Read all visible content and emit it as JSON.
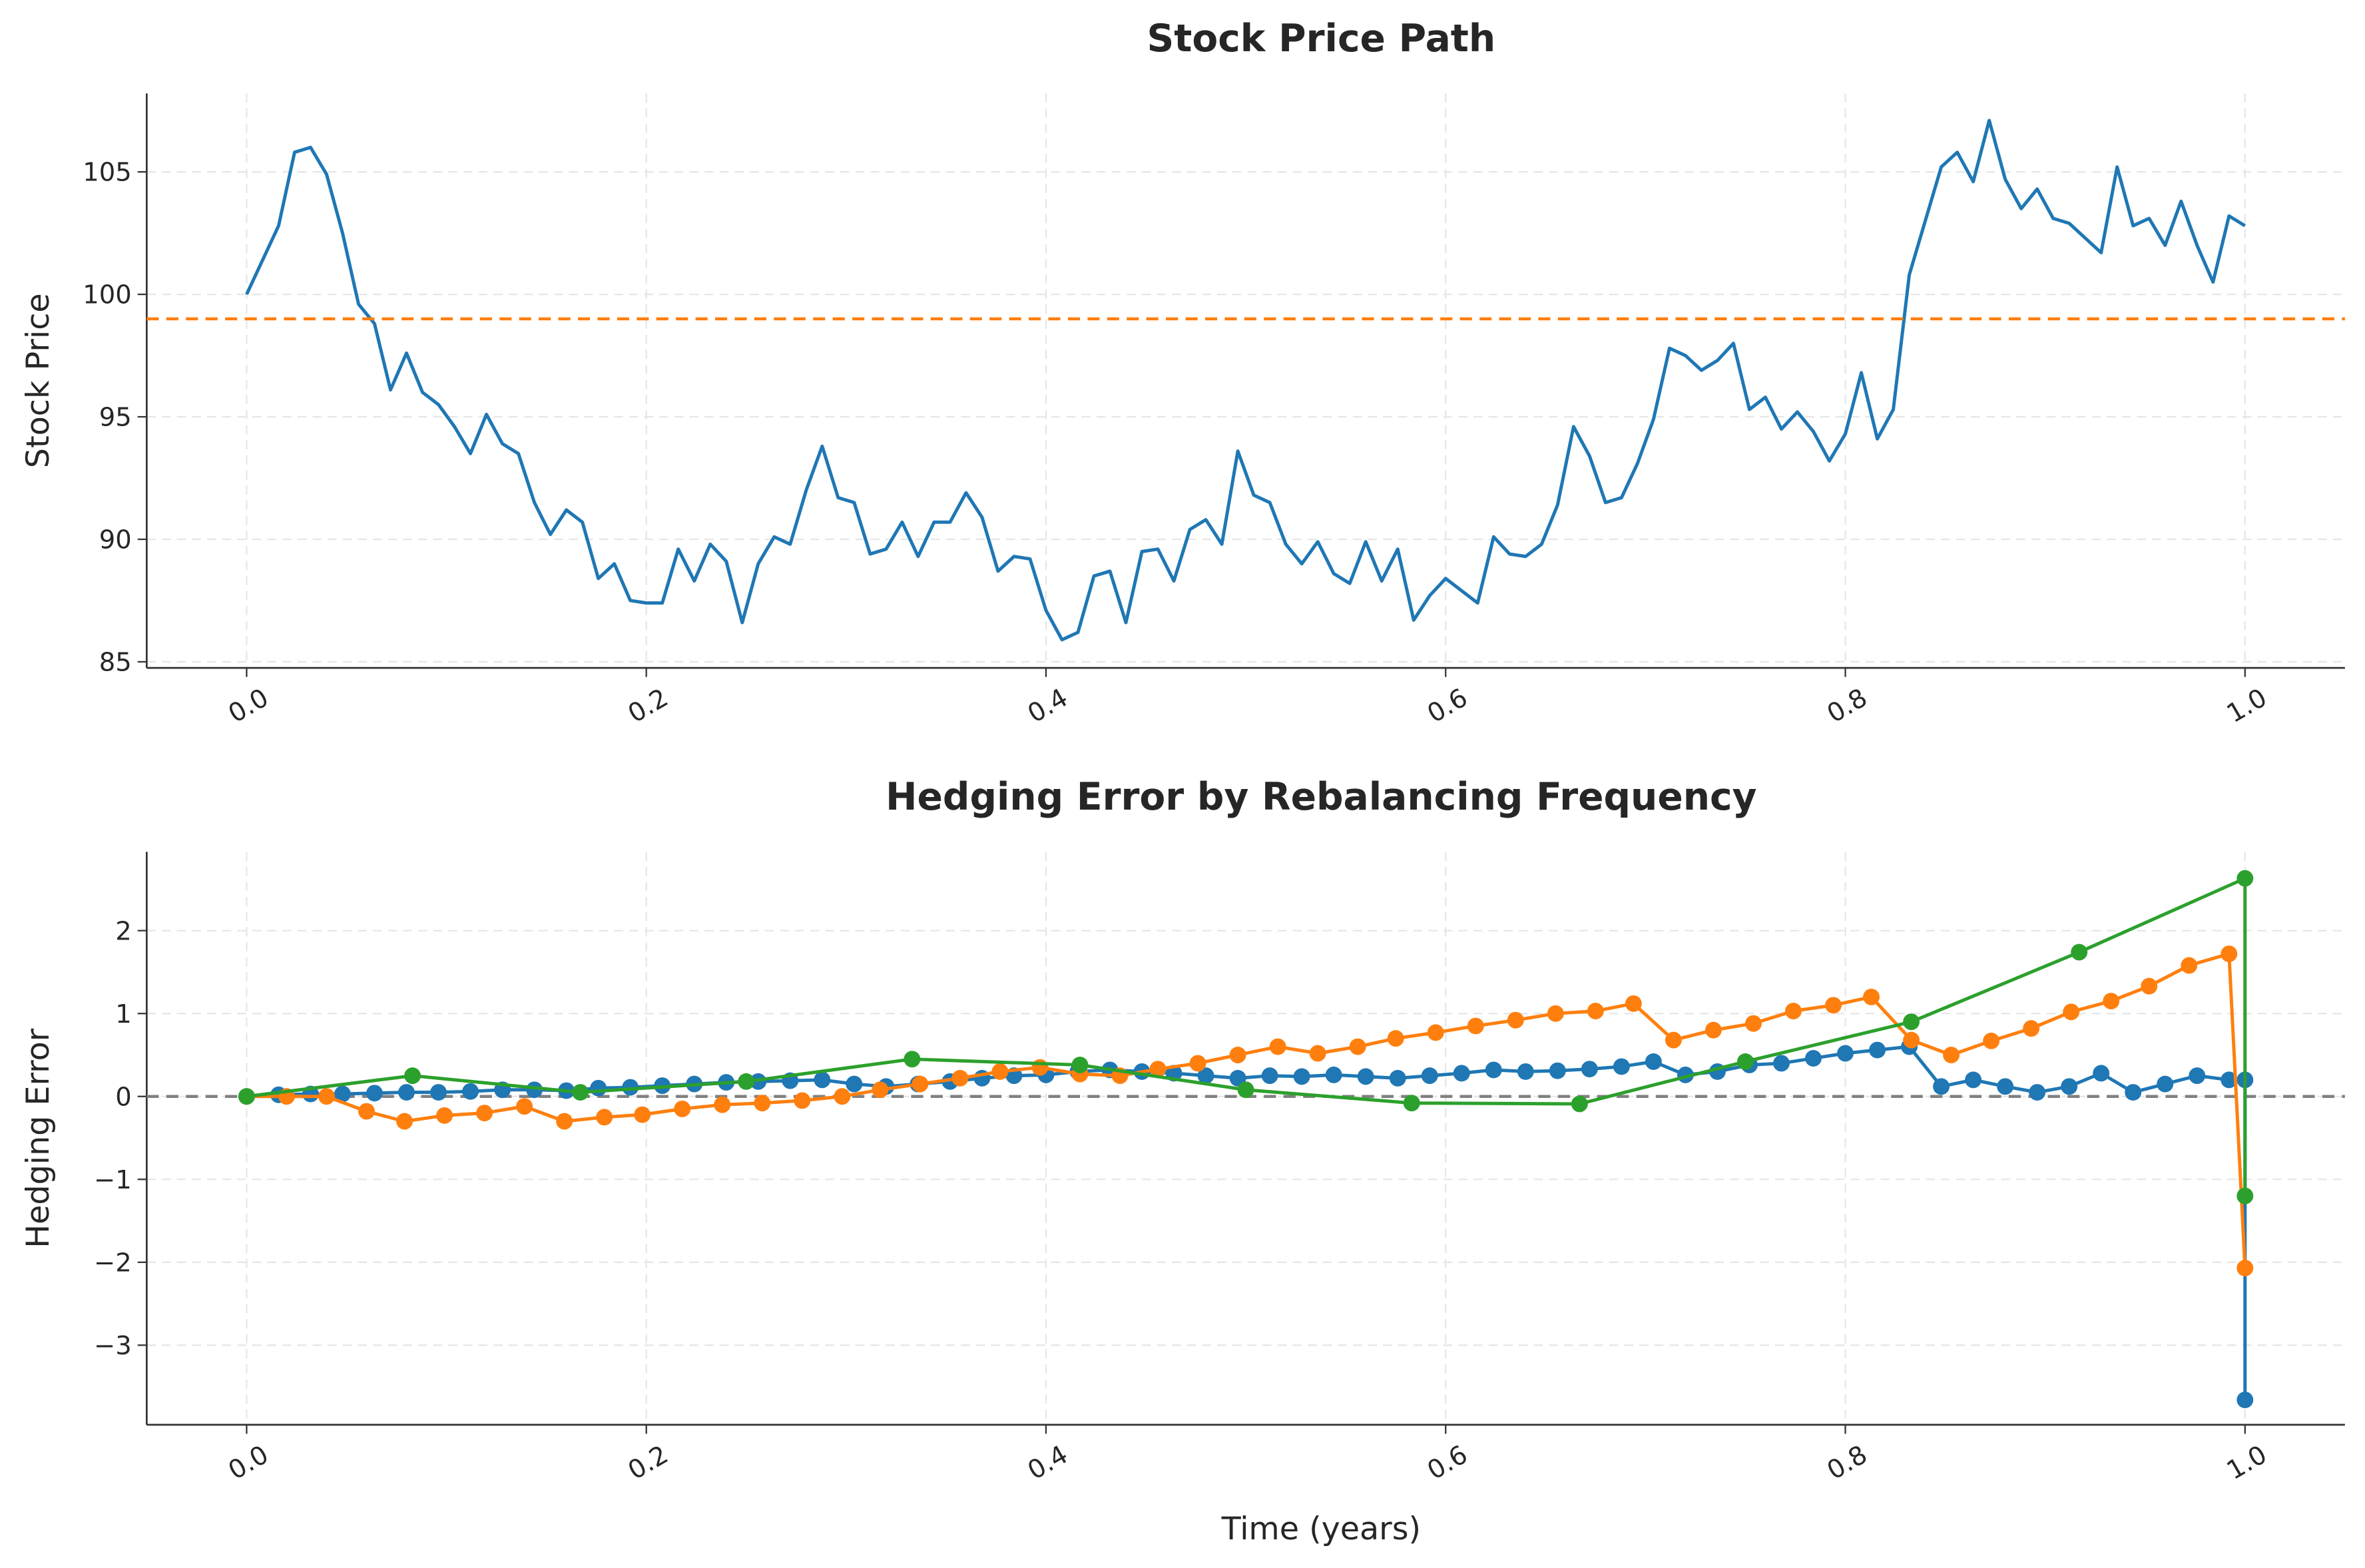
{
  "chart_data": [
    {
      "type": "line",
      "title": "Stock Price Path",
      "ylabel": "Stock Price",
      "xlim": [
        -0.05,
        1.05
      ],
      "ylim": [
        84.75,
        108.2
      ],
      "xticks": [
        {
          "value": 0,
          "label": "0.0"
        },
        {
          "value": 0.2,
          "label": "0.2"
        },
        {
          "value": 0.4,
          "label": "0.4"
        },
        {
          "value": 0.6,
          "label": "0.6"
        },
        {
          "value": 0.8,
          "label": "0.8"
        },
        {
          "value": 1,
          "label": "1.0"
        }
      ],
      "yticks": [
        85,
        90,
        95,
        100,
        105
      ],
      "grid": true,
      "hlines": [
        {
          "value": 99,
          "color": "#ff7f0e"
        }
      ],
      "series": [
        {
          "color": "#1f77b4",
          "marker": false,
          "x": [
            0,
            0.008,
            0.016,
            0.024,
            0.032,
            0.04,
            0.048,
            0.056,
            0.064,
            0.072,
            0.08,
            0.088,
            0.096,
            0.104,
            0.112,
            0.12,
            0.128,
            0.136,
            0.144,
            0.152,
            0.16,
            0.168,
            0.176,
            0.184,
            0.192,
            0.2,
            0.208,
            0.216,
            0.224,
            0.232,
            0.24,
            0.248,
            0.256,
            0.264,
            0.272,
            0.28,
            0.288,
            0.296,
            0.304,
            0.312,
            0.32,
            0.328,
            0.336,
            0.344,
            0.352,
            0.36,
            0.368,
            0.376,
            0.384,
            0.392,
            0.4,
            0.408,
            0.416,
            0.424,
            0.432,
            0.44,
            0.448,
            0.456,
            0.464,
            0.472,
            0.48,
            0.488,
            0.496,
            0.504,
            0.512,
            0.52,
            0.528,
            0.536,
            0.544,
            0.552,
            0.56,
            0.568,
            0.576,
            0.584,
            0.592,
            0.6,
            0.608,
            0.616,
            0.624,
            0.632,
            0.64,
            0.648,
            0.656,
            0.664,
            0.672,
            0.68,
            0.688,
            0.696,
            0.704,
            0.712,
            0.72,
            0.728,
            0.736,
            0.744,
            0.752,
            0.76,
            0.768,
            0.776,
            0.784,
            0.792,
            0.8,
            0.808,
            0.816,
            0.824,
            0.832,
            0.84,
            0.848,
            0.856,
            0.864,
            0.872,
            0.88,
            0.888,
            0.896,
            0.904,
            0.912,
            0.92,
            0.928,
            0.936,
            0.944,
            0.952,
            0.96,
            0.968,
            0.976,
            0.984,
            0.992,
            1.0
          ],
          "values": [
            100.0,
            101.4,
            102.8,
            105.8,
            106.0,
            104.9,
            102.5,
            99.6,
            98.8,
            96.1,
            97.6,
            96.0,
            95.5,
            94.6,
            93.5,
            95.1,
            93.9,
            93.5,
            91.5,
            90.2,
            91.2,
            90.7,
            88.4,
            89.0,
            87.5,
            87.4,
            87.4,
            89.6,
            88.3,
            89.8,
            89.1,
            86.6,
            89.0,
            90.1,
            89.8,
            92.0,
            93.8,
            91.7,
            91.5,
            89.4,
            89.6,
            90.7,
            89.3,
            90.7,
            90.7,
            91.9,
            90.9,
            88.7,
            89.3,
            89.2,
            87.1,
            85.9,
            86.2,
            88.5,
            88.7,
            86.6,
            89.5,
            89.6,
            88.3,
            90.4,
            90.8,
            89.8,
            93.6,
            91.8,
            91.5,
            89.8,
            89.0,
            89.9,
            88.6,
            88.2,
            89.9,
            88.3,
            89.6,
            86.7,
            87.7,
            88.4,
            87.9,
            87.4,
            90.1,
            89.4,
            89.3,
            89.8,
            91.4,
            94.6,
            93.4,
            91.5,
            91.7,
            93.1,
            94.9,
            97.8,
            97.5,
            96.9,
            97.3,
            98.0,
            95.3,
            95.8,
            94.5,
            95.2,
            94.4,
            93.2,
            94.3,
            96.8,
            94.1,
            95.3,
            100.8,
            103.0,
            105.2,
            105.8,
            104.6,
            107.1,
            104.7,
            103.5,
            104.3,
            103.1,
            102.9,
            102.3,
            101.7,
            105.2,
            102.8,
            103.1,
            102.0,
            103.8,
            102.0,
            100.5,
            103.2,
            102.8
          ]
        }
      ]
    },
    {
      "type": "line",
      "title": "Hedging Error by Rebalancing Frequency",
      "ylabel": "Hedging Error",
      "xlabel": "Time (years)",
      "xlim": [
        -0.05,
        1.05
      ],
      "ylim": [
        -3.96,
        2.95
      ],
      "xticks": [
        {
          "value": 0,
          "label": "0.0"
        },
        {
          "value": 0.2,
          "label": "0.2"
        },
        {
          "value": 0.4,
          "label": "0.4"
        },
        {
          "value": 0.6,
          "label": "0.6"
        },
        {
          "value": 0.8,
          "label": "0.8"
        },
        {
          "value": 1,
          "label": "1.0"
        }
      ],
      "yticks": [
        {
          "value": -3,
          "label": "−3"
        },
        {
          "value": -2,
          "label": "−2"
        },
        {
          "value": -1,
          "label": "−1"
        },
        0,
        1,
        2
      ],
      "grid": true,
      "hlines": [
        {
          "value": 0,
          "color": "#808080"
        }
      ],
      "series": [
        {
          "color": "#1f77b4",
          "marker": true,
          "x": [
            0,
            0.016,
            0.032,
            0.048,
            0.064,
            0.08,
            0.096,
            0.112,
            0.128,
            0.144,
            0.16,
            0.176,
            0.192,
            0.208,
            0.224,
            0.24,
            0.256,
            0.272,
            0.288,
            0.304,
            0.32,
            0.336,
            0.352,
            0.368,
            0.384,
            0.4,
            0.416,
            0.432,
            0.448,
            0.464,
            0.48,
            0.496,
            0.512,
            0.528,
            0.544,
            0.56,
            0.576,
            0.592,
            0.608,
            0.624,
            0.64,
            0.656,
            0.672,
            0.688,
            0.704,
            0.72,
            0.736,
            0.752,
            0.768,
            0.784,
            0.8,
            0.816,
            0.832,
            0.848,
            0.864,
            0.88,
            0.896,
            0.912,
            0.928,
            0.944,
            0.96,
            0.976,
            0.992,
            1.0,
            1.0
          ],
          "values": [
            0,
            0.02,
            0.03,
            0.03,
            0.04,
            0.05,
            0.05,
            0.06,
            0.08,
            0.08,
            0.07,
            0.1,
            0.11,
            0.13,
            0.15,
            0.17,
            0.18,
            0.19,
            0.2,
            0.15,
            0.12,
            0.15,
            0.18,
            0.22,
            0.25,
            0.26,
            0.3,
            0.32,
            0.3,
            0.28,
            0.25,
            0.22,
            0.25,
            0.24,
            0.26,
            0.24,
            0.22,
            0.25,
            0.28,
            0.32,
            0.3,
            0.31,
            0.33,
            0.36,
            0.42,
            0.26,
            0.3,
            0.38,
            0.4,
            0.46,
            0.52,
            0.56,
            0.6,
            0.12,
            0.2,
            0.12,
            0.05,
            0.12,
            0.28,
            0.05,
            0.15,
            0.25,
            0.2,
            0.2,
            -3.66
          ]
        },
        {
          "color": "#ff7f0e",
          "marker": true,
          "x": [
            0,
            0.02,
            0.04,
            0.06,
            0.079,
            0.099,
            0.119,
            0.139,
            0.159,
            0.179,
            0.198,
            0.218,
            0.238,
            0.258,
            0.278,
            0.298,
            0.317,
            0.337,
            0.357,
            0.377,
            0.397,
            0.417,
            0.437,
            0.456,
            0.476,
            0.496,
            0.516,
            0.536,
            0.556,
            0.575,
            0.595,
            0.615,
            0.635,
            0.655,
            0.675,
            0.694,
            0.714,
            0.734,
            0.754,
            0.774,
            0.794,
            0.813,
            0.833,
            0.853,
            0.873,
            0.893,
            0.913,
            0.933,
            0.952,
            0.972,
            0.992,
            1.0
          ],
          "values": [
            0,
            0,
            0,
            -0.18,
            -0.3,
            -0.23,
            -0.2,
            -0.12,
            -0.3,
            -0.25,
            -0.22,
            -0.15,
            -0.1,
            -0.08,
            -0.05,
            0,
            0.08,
            0.15,
            0.22,
            0.3,
            0.35,
            0.27,
            0.25,
            0.33,
            0.4,
            0.5,
            0.6,
            0.52,
            0.6,
            0.7,
            0.77,
            0.85,
            0.92,
            1.0,
            1.03,
            1.12,
            0.68,
            0.8,
            0.88,
            1.03,
            1.1,
            1.2,
            0.68,
            0.5,
            0.67,
            0.82,
            1.02,
            1.15,
            1.33,
            1.58,
            1.72,
            -2.07
          ]
        },
        {
          "color": "#2ca02c",
          "marker": true,
          "x": [
            0,
            0.083,
            0.167,
            0.25,
            0.333,
            0.417,
            0.5,
            0.583,
            0.667,
            0.75,
            0.833,
            0.917,
            1.0,
            1.0
          ],
          "values": [
            0,
            0.25,
            0.05,
            0.18,
            0.45,
            0.38,
            0.08,
            -0.08,
            -0.09,
            0.42,
            0.9,
            1.74,
            2.63,
            -1.2
          ]
        }
      ]
    }
  ]
}
